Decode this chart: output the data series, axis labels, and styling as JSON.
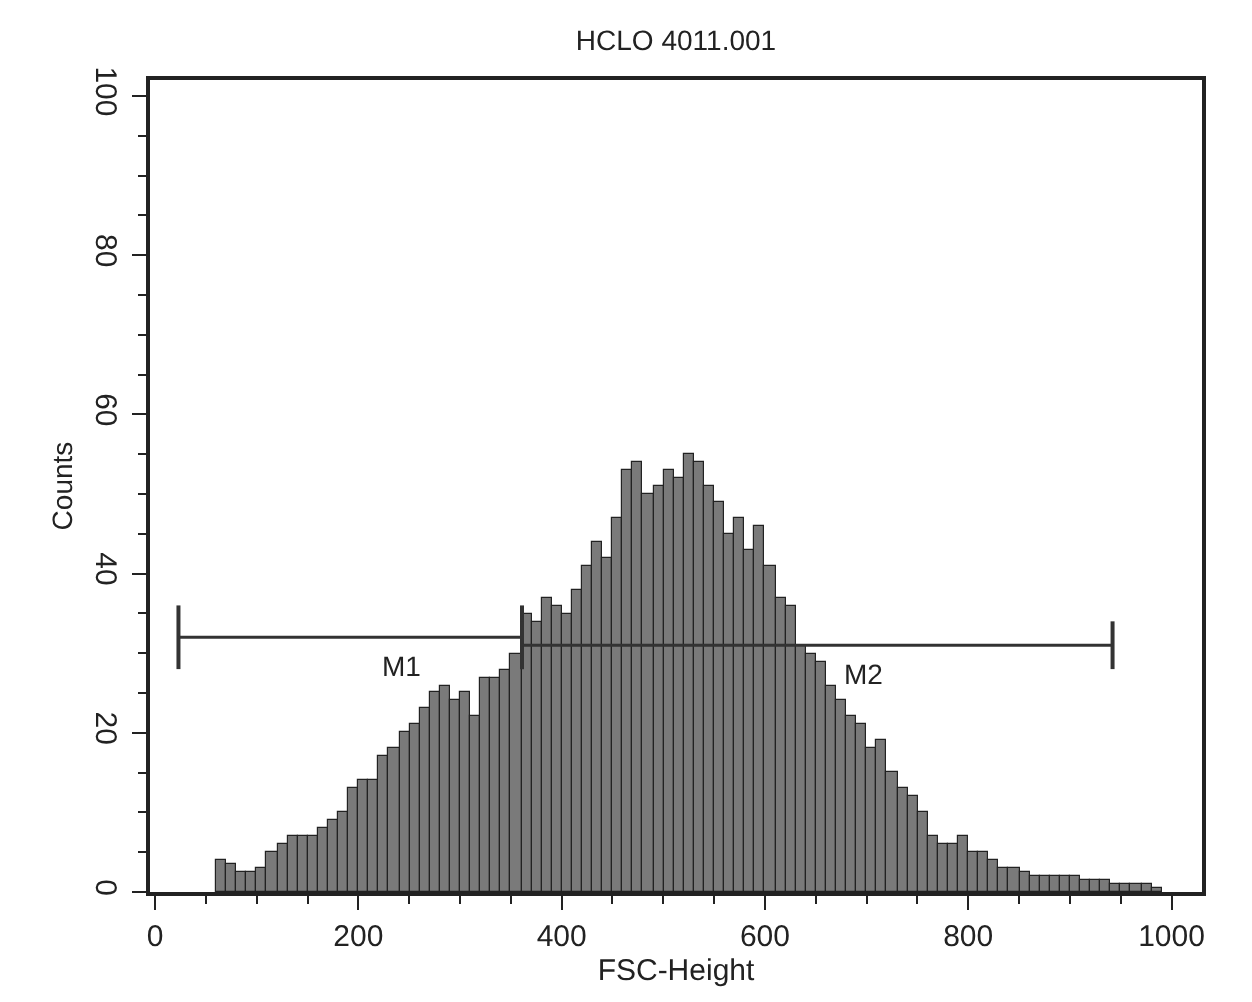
{
  "chart_data": {
    "type": "histogram",
    "title": "HCLO 4011.001",
    "xlabel": "FSC-Height",
    "ylabel": "Counts",
    "bins": [
      60,
      70,
      80,
      90,
      100,
      110,
      120,
      130,
      140,
      150,
      160,
      170,
      180,
      190,
      200,
      210,
      220,
      230,
      240,
      250,
      260,
      270,
      280,
      290,
      300,
      310,
      320,
      330,
      340,
      350,
      360,
      370,
      380,
      390,
      400,
      410,
      420,
      430,
      440,
      450,
      460,
      470,
      480,
      490,
      500,
      510,
      520,
      530,
      540,
      550,
      560,
      570,
      580,
      590,
      600,
      610,
      620,
      630,
      640,
      650,
      660,
      670,
      680,
      690,
      700,
      710,
      720,
      730,
      740,
      750,
      760,
      770,
      780,
      790,
      800,
      810,
      820,
      830,
      840,
      850,
      860,
      870,
      880,
      890,
      900,
      910,
      920,
      930,
      940,
      950,
      960,
      970,
      980,
      990
    ],
    "values": [
      4,
      3.5,
      2.5,
      2.5,
      3,
      5,
      6,
      7,
      7,
      7,
      8,
      9,
      10,
      13,
      14,
      14,
      17,
      18,
      20,
      21,
      23,
      25,
      26,
      24,
      25,
      22,
      27,
      27,
      28,
      30,
      35,
      34,
      37,
      36,
      35,
      38,
      41,
      44,
      42,
      47,
      53,
      54,
      50,
      51,
      53,
      52,
      55,
      54,
      51,
      49,
      45,
      47,
      43,
      46,
      41,
      37,
      36,
      31,
      30,
      29,
      26,
      24,
      22,
      21,
      18,
      19,
      15,
      13,
      12,
      10,
      7,
      6,
      6,
      7,
      5,
      5,
      4,
      3,
      3,
      2.5,
      2,
      2,
      2,
      2,
      2,
      1.5,
      1.5,
      1.5,
      1,
      1,
      1,
      1,
      0.5
    ],
    "color": "#7a7a7a",
    "series": [
      {
        "type": "line",
        "name": "M1",
        "color": "#333333",
        "x": [
          23,
          361
        ],
        "values": [
          32,
          32
        ],
        "errors": [
          4,
          4
        ]
      },
      {
        "type": "line",
        "name": "M2",
        "color": "#333333",
        "x": [
          361,
          942
        ],
        "values": [
          31,
          31
        ],
        "errors": [
          3,
          3
        ]
      }
    ],
    "xlim": [
      -5,
      1030
    ],
    "ylim": [
      0,
      102
    ],
    "xticks": [
      0,
      200,
      400,
      600,
      800,
      1000
    ],
    "yticks": [
      0,
      20,
      40,
      60,
      80,
      100
    ],
    "grid": false,
    "legend": false
  }
}
